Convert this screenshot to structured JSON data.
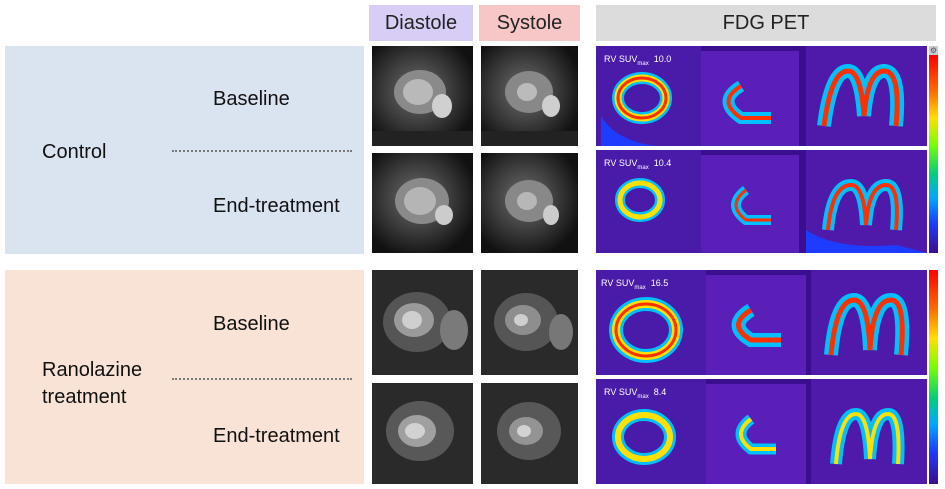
{
  "headers": {
    "diastole": "Diastole",
    "systole": "Systole",
    "pet": "FDG PET"
  },
  "groups": [
    {
      "label": "Control",
      "rows": [
        {
          "label": "Baseline",
          "suv_prefix": "RV SUV",
          "suv_sub": "max",
          "suv_value": "10.0"
        },
        {
          "label": "End-treatment",
          "suv_prefix": "RV SUV",
          "suv_sub": "max",
          "suv_value": "10.4"
        }
      ]
    },
    {
      "label_line1": "Ranolazine",
      "label_line2": "treatment",
      "rows": [
        {
          "label": "Baseline",
          "suv_prefix": "RV SUV",
          "suv_sub": "max",
          "suv_value": "16.5"
        },
        {
          "label": "End-treatment",
          "suv_prefix": "RV SUV",
          "suv_sub": "max",
          "suv_value": "8.4"
        }
      ]
    }
  ],
  "colors": {
    "control_bg": "#dae4f1",
    "ranolazine_bg": "#f8e3d6",
    "diastole_header": "#d8cdf5",
    "systole_header": "#f7c6c6",
    "pet_header": "#dcdcdc",
    "pet_background": "#3a0e8e"
  },
  "icons": [
    "gear-icon"
  ]
}
